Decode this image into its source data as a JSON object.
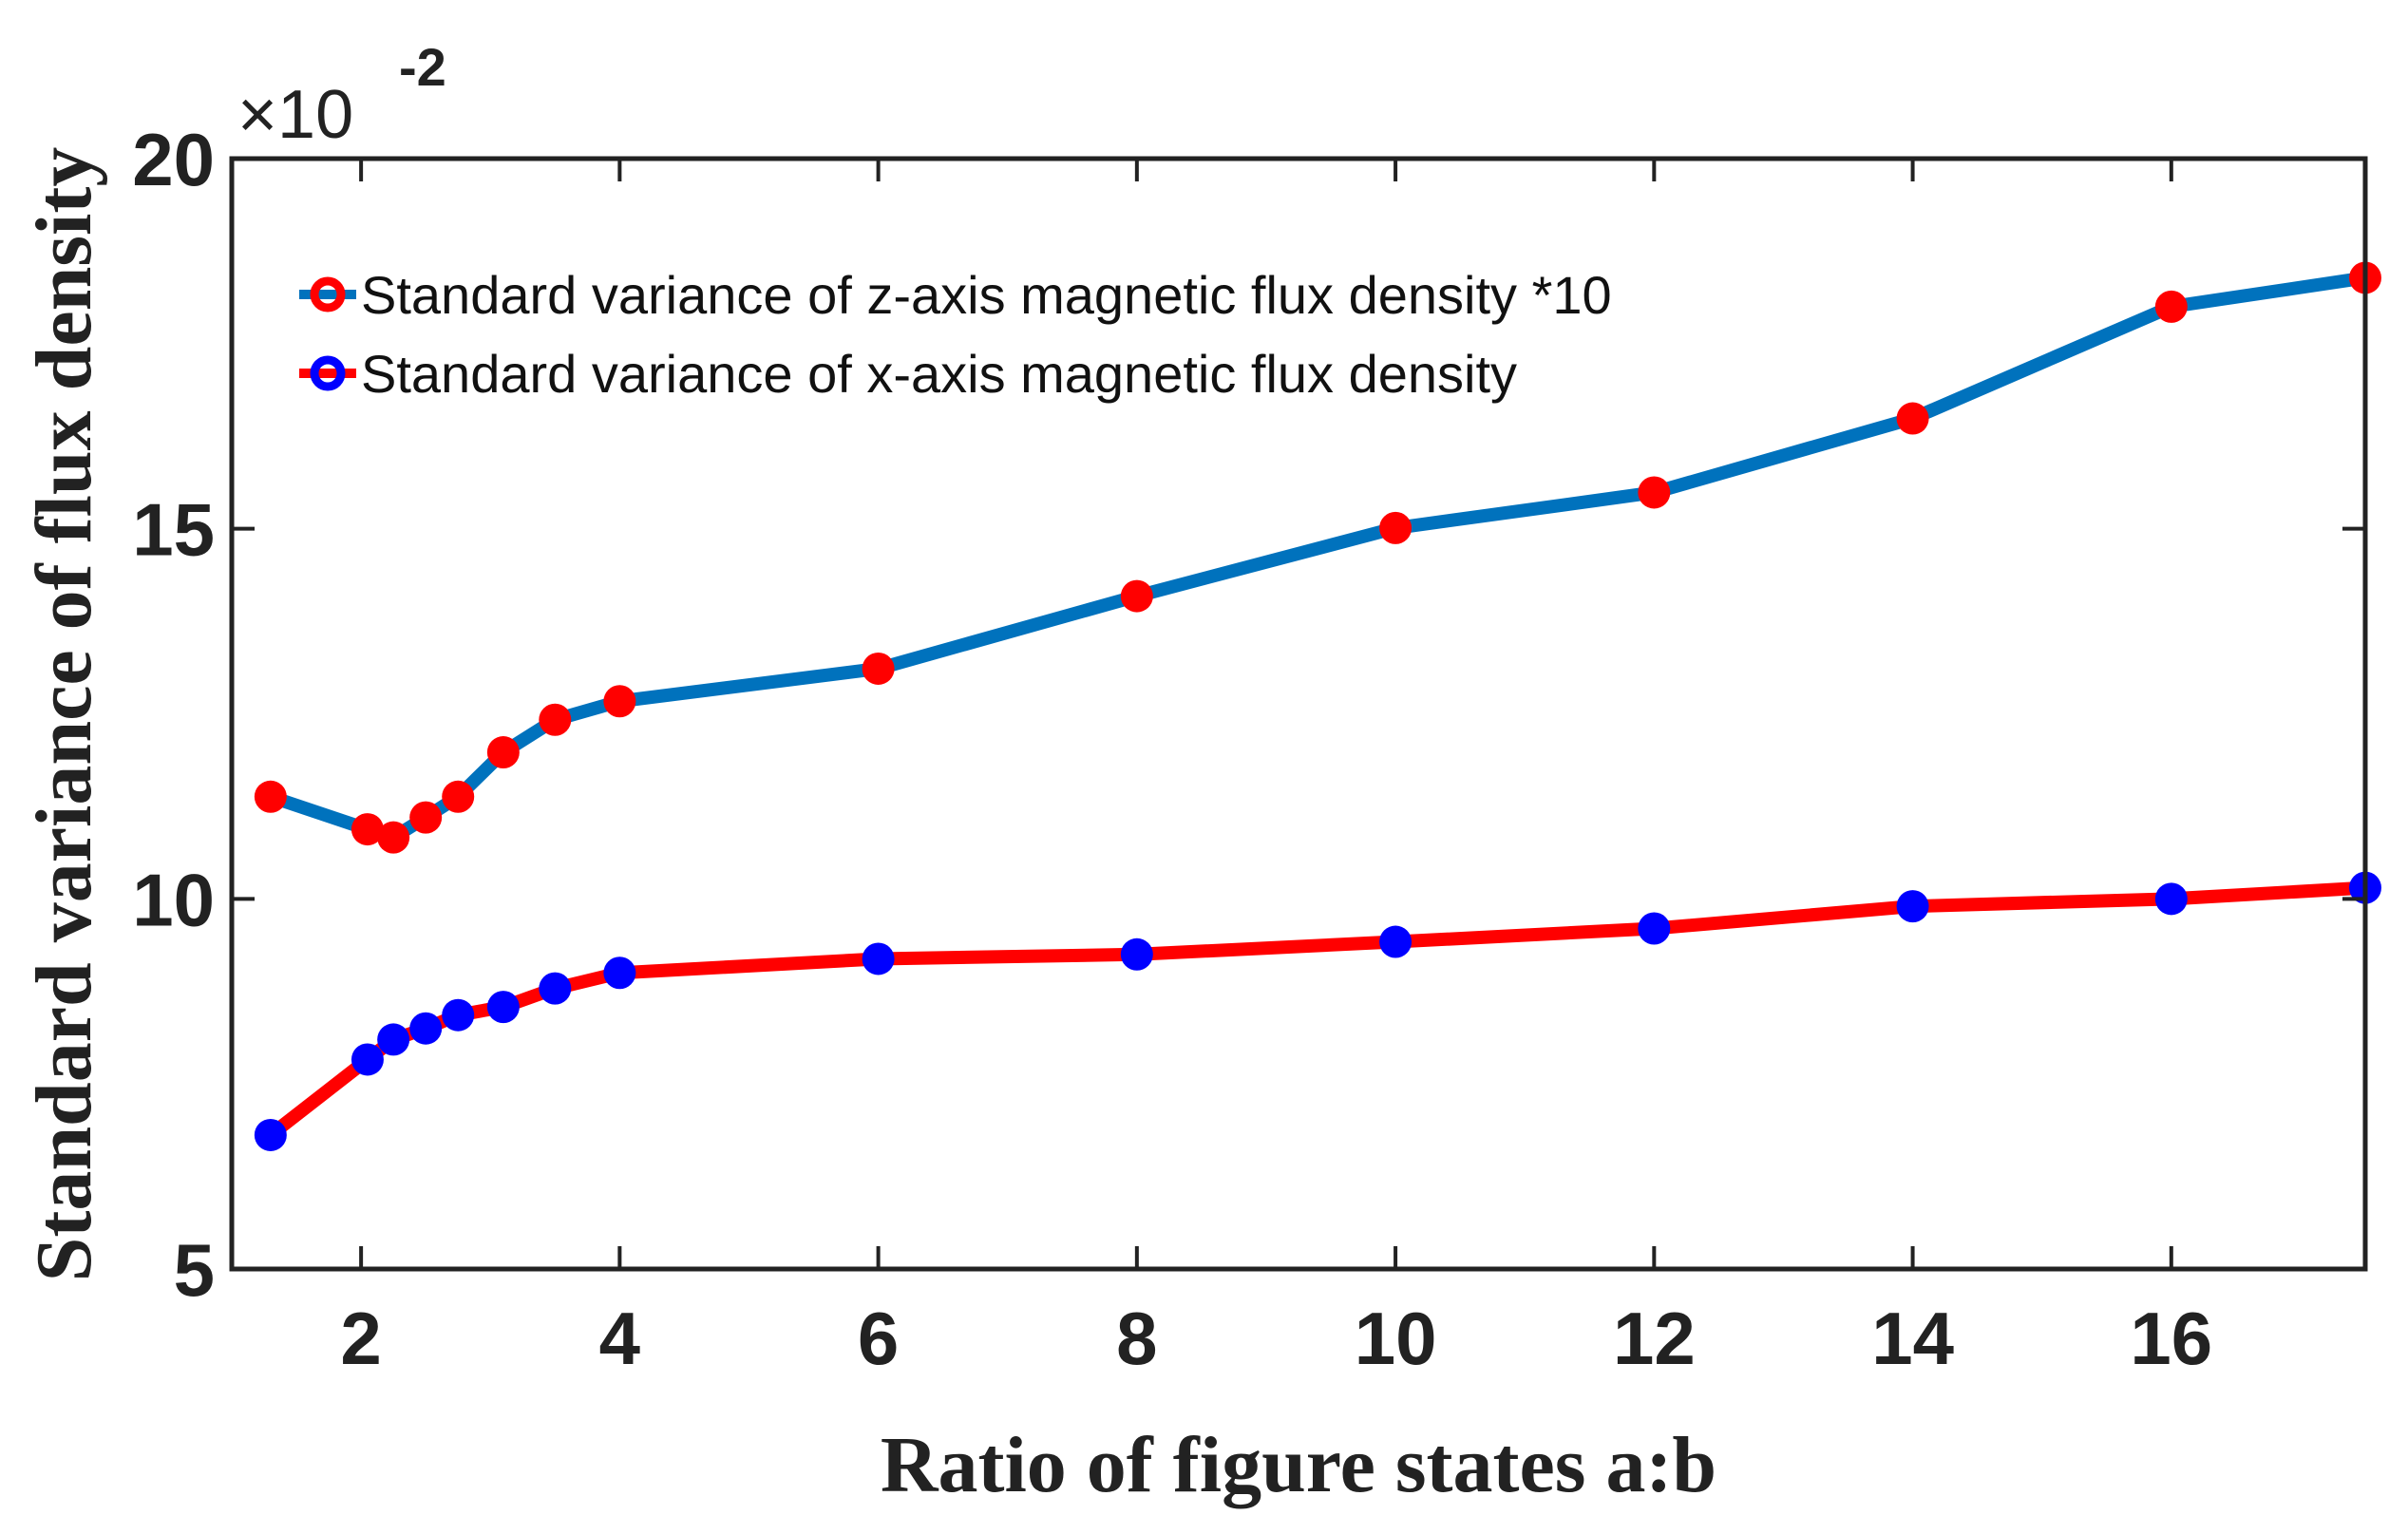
{
  "chart_data": {
    "type": "line",
    "title": "",
    "xlabel": "Ratio of figure states a:b",
    "ylabel": "Standard variance of flux density",
    "y_multiplier": {
      "base": "×10",
      "exponent": "-2"
    },
    "xlim": [
      1,
      17.5
    ],
    "ylim": [
      5,
      20
    ],
    "xticks": [
      2,
      4,
      6,
      8,
      10,
      12,
      14,
      16
    ],
    "yticks": [
      5,
      10,
      15,
      20
    ],
    "grid": false,
    "legend_position": "top-left",
    "x": [
      1.3,
      2.05,
      2.25,
      2.5,
      2.75,
      3.1,
      3.5,
      4,
      6,
      8,
      10,
      12,
      14,
      16,
      17.5
    ],
    "series": [
      {
        "name": "Standard variance of z-axis magnetic flux density *10",
        "line_color": "#0072BD",
        "marker_color": "#FF0000",
        "values": [
          11.38,
          10.94,
          10.83,
          11.1,
          11.38,
          11.98,
          12.42,
          12.67,
          13.11,
          14.09,
          15.01,
          15.49,
          16.49,
          18.0,
          18.39
        ]
      },
      {
        "name": "Standard variance of x-axis magnetic flux density",
        "line_color": "#FF0000",
        "marker_color": "#0000FF",
        "values": [
          6.81,
          7.83,
          8.1,
          8.25,
          8.43,
          8.54,
          8.79,
          9.0,
          9.19,
          9.25,
          9.42,
          9.6,
          9.9,
          10.0,
          10.15
        ]
      }
    ]
  }
}
